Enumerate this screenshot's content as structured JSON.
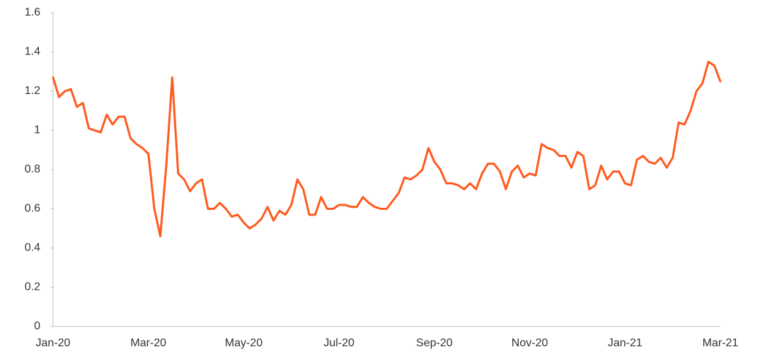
{
  "chart_data": {
    "type": "line",
    "categories": [
      "Jan-20",
      null,
      null,
      null,
      null,
      null,
      null,
      null,
      null,
      null,
      null,
      null,
      null,
      null,
      null,
      null,
      "Mar-20",
      null,
      null,
      null,
      null,
      null,
      null,
      null,
      null,
      null,
      null,
      null,
      null,
      null,
      null,
      null,
      "May-20",
      null,
      null,
      null,
      null,
      null,
      null,
      null,
      null,
      null,
      null,
      null,
      null,
      null,
      null,
      null,
      "Jul-20",
      null,
      null,
      null,
      null,
      null,
      null,
      null,
      null,
      null,
      null,
      null,
      null,
      null,
      null,
      null,
      "Sep-20",
      null,
      null,
      null,
      null,
      null,
      null,
      null,
      null,
      null,
      null,
      null,
      null,
      null,
      null,
      null,
      "Nov-20",
      null,
      null,
      null,
      null,
      null,
      null,
      null,
      null,
      null,
      null,
      null,
      null,
      null,
      null,
      null,
      "Jan-21",
      null,
      null,
      null,
      null,
      null,
      null,
      null,
      null,
      null,
      null,
      null,
      null,
      null,
      null,
      null,
      "Mar-21"
    ],
    "series": [
      {
        "color": "#ff5a1f",
        "values": [
          1.27,
          1.17,
          1.2,
          1.21,
          1.12,
          1.14,
          1.01,
          1.0,
          0.99,
          1.08,
          1.03,
          1.07,
          1.07,
          0.96,
          0.93,
          0.91,
          0.88,
          0.6,
          0.46,
          0.82,
          1.27,
          0.78,
          0.75,
          0.69,
          0.73,
          0.75,
          0.6,
          0.6,
          0.63,
          0.6,
          0.56,
          0.57,
          0.53,
          0.5,
          0.52,
          0.55,
          0.61,
          0.54,
          0.59,
          0.57,
          0.62,
          0.75,
          0.7,
          0.57,
          0.57,
          0.66,
          0.6,
          0.6,
          0.62,
          0.62,
          0.61,
          0.61,
          0.66,
          0.63,
          0.61,
          0.6,
          0.6,
          0.64,
          0.68,
          0.76,
          0.75,
          0.77,
          0.8,
          0.91,
          0.84,
          0.8,
          0.73,
          0.73,
          0.72,
          0.7,
          0.73,
          0.7,
          0.78,
          0.83,
          0.83,
          0.79,
          0.7,
          0.79,
          0.82,
          0.76,
          0.78,
          0.77,
          0.93,
          0.91,
          0.9,
          0.87,
          0.87,
          0.81,
          0.89,
          0.87,
          0.7,
          0.72,
          0.82,
          0.75,
          0.79,
          0.79,
          0.73,
          0.72,
          0.85,
          0.87,
          0.84,
          0.83,
          0.86,
          0.81,
          0.86,
          1.04,
          1.03,
          1.1,
          1.2,
          1.24,
          1.35,
          1.33,
          1.25
        ]
      }
    ],
    "ylim": [
      0,
      1.6
    ],
    "yticks": [
      0,
      0.2,
      0.4,
      0.6,
      0.8,
      1,
      1.2,
      1.4,
      1.6
    ],
    "grid": false
  }
}
